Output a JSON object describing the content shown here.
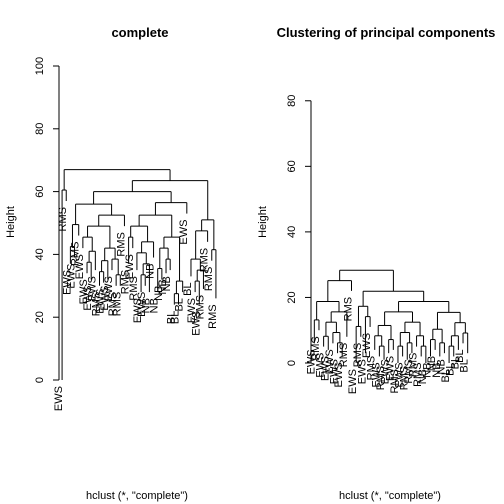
{
  "chart_data": [
    {
      "type": "dendrogram",
      "title": "complete",
      "ylabel": "Height",
      "xlabel": "hclust (*, \"complete\")",
      "ylim": [
        0,
        100
      ],
      "yticks": [
        0,
        20,
        40,
        60,
        80,
        100
      ],
      "leaves": [
        {
          "label": "EWS",
          "height": 0
        },
        {
          "label": "RMS",
          "height": 57
        },
        {
          "label": "EWS",
          "height": 37
        },
        {
          "label": "EWS",
          "height": 39
        },
        {
          "label": "RMS",
          "height": 46
        },
        {
          "label": "EWS",
          "height": 42
        },
        {
          "label": "EWS",
          "height": 34
        },
        {
          "label": "EWS",
          "height": 32
        },
        {
          "label": "EWS",
          "height": 35
        },
        {
          "label": "RMS",
          "height": 30
        },
        {
          "label": "EWS",
          "height": 31
        },
        {
          "label": "EWS",
          "height": 32
        },
        {
          "label": "EWS",
          "height": 35
        },
        {
          "label": "RMS",
          "height": 30
        },
        {
          "label": "RMS",
          "height": 30
        },
        {
          "label": "RMS",
          "height": 49
        },
        {
          "label": "RMS",
          "height": 37
        },
        {
          "label": "EWS",
          "height": 42
        },
        {
          "label": "RMS",
          "height": 35
        },
        {
          "label": "EWS",
          "height": 28
        },
        {
          "label": "EWS",
          "height": 30
        },
        {
          "label": "NB",
          "height": 28
        },
        {
          "label": "NB",
          "height": 39
        },
        {
          "label": "NB",
          "height": 28
        },
        {
          "label": "NB",
          "height": 32
        },
        {
          "label": "NB",
          "height": 34
        },
        {
          "label": "NB",
          "height": 35
        },
        {
          "label": "BL",
          "height": 24
        },
        {
          "label": "BL",
          "height": 24
        },
        {
          "label": "BL",
          "height": 28
        },
        {
          "label": "EWS",
          "height": 53
        },
        {
          "label": "BL",
          "height": 33
        },
        {
          "label": "EWS",
          "height": 28
        },
        {
          "label": "EWS",
          "height": 24
        },
        {
          "label": "RMS",
          "height": 29
        },
        {
          "label": "RMS",
          "height": 44
        },
        {
          "label": "RMS",
          "height": 38
        },
        {
          "label": "RMS",
          "height": 26
        }
      ]
    },
    {
      "type": "dendrogram",
      "title": "Clustering of principal components",
      "ylabel": "Height",
      "xlabel": "hclust (*, \"complete\")",
      "ylim": [
        0,
        90
      ],
      "yticks": [
        0,
        20,
        40,
        60,
        80
      ],
      "leaves": [
        {
          "label": "EWS",
          "height": 6
        },
        {
          "label": "RMS",
          "height": 10
        },
        {
          "label": "EWS",
          "height": 5
        },
        {
          "label": "EWS",
          "height": 4
        },
        {
          "label": "EWS",
          "height": 6
        },
        {
          "label": "EWS",
          "height": 3
        },
        {
          "label": "EWS",
          "height": 2
        },
        {
          "label": "RMS",
          "height": 8
        },
        {
          "label": "RMS",
          "height": 22
        },
        {
          "label": "EWS",
          "height": 0
        },
        {
          "label": "RMS",
          "height": 8
        },
        {
          "label": "EWS",
          "height": 3
        },
        {
          "label": "EWS",
          "height": 11
        },
        {
          "label": "RMS",
          "height": 4
        },
        {
          "label": "EWS",
          "height": 2
        },
        {
          "label": "RMS",
          "height": 1
        },
        {
          "label": "EWS",
          "height": 3
        },
        {
          "label": "EWS",
          "height": 4
        },
        {
          "label": "RMS",
          "height": 0
        },
        {
          "label": "EWS",
          "height": 2
        },
        {
          "label": "RMS",
          "height": 1
        },
        {
          "label": "RMS",
          "height": 3
        },
        {
          "label": "RMS",
          "height": 5
        },
        {
          "label": "RMS",
          "height": 2
        },
        {
          "label": "NB",
          "height": 0
        },
        {
          "label": "NB",
          "height": 2
        },
        {
          "label": "NB",
          "height": 4
        },
        {
          "label": "NB",
          "height": 2
        },
        {
          "label": "NB",
          "height": 3
        },
        {
          "label": "BL",
          "height": 0
        },
        {
          "label": "BL",
          "height": 2
        },
        {
          "label": "BL",
          "height": 4
        },
        {
          "label": "BL",
          "height": 6
        },
        {
          "label": "BL",
          "height": 3
        }
      ]
    }
  ]
}
